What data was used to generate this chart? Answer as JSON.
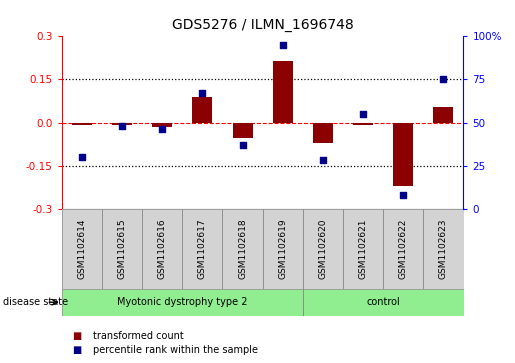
{
  "title": "GDS5276 / ILMN_1696748",
  "samples": [
    "GSM1102614",
    "GSM1102615",
    "GSM1102616",
    "GSM1102617",
    "GSM1102618",
    "GSM1102619",
    "GSM1102620",
    "GSM1102621",
    "GSM1102622",
    "GSM1102623"
  ],
  "transformed_count": [
    -0.01,
    -0.01,
    -0.015,
    0.09,
    -0.055,
    0.215,
    -0.07,
    -0.01,
    -0.22,
    0.055
  ],
  "percentile_rank": [
    30,
    48,
    46,
    67,
    37,
    95,
    28,
    55,
    8,
    75
  ],
  "groups": [
    {
      "label": "Myotonic dystrophy type 2",
      "start": 0,
      "end": 6,
      "color": "#90EE90"
    },
    {
      "label": "control",
      "start": 6,
      "end": 10,
      "color": "#90EE90"
    }
  ],
  "ylim_left": [
    -0.3,
    0.3
  ],
  "ylim_right": [
    0,
    100
  ],
  "yticks_left": [
    -0.3,
    -0.15,
    0.0,
    0.15,
    0.3
  ],
  "yticks_right": [
    0,
    25,
    50,
    75,
    100
  ],
  "hlines_dotted": [
    0.15,
    -0.15
  ],
  "bar_color": "#8B0000",
  "dot_color": "#00008B",
  "bar_width": 0.5,
  "disease_state_label": "disease state",
  "legend": [
    {
      "label": "transformed count",
      "color": "#8B0000"
    },
    {
      "label": "percentile rank within the sample",
      "color": "#00008B"
    }
  ]
}
